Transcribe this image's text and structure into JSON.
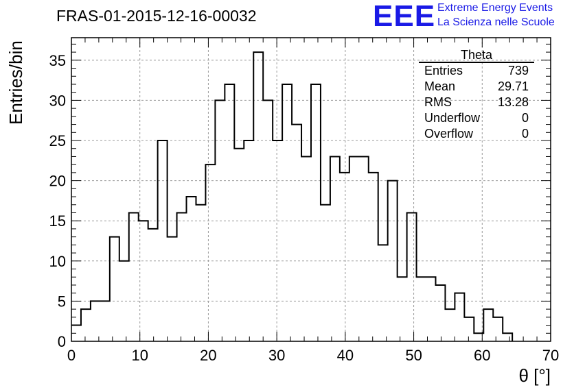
{
  "header": {
    "run_title": "FRAS-01-2015-12-16-00032",
    "logo_text": "EEE",
    "logo_line1": "Extreme Energy Events",
    "logo_line2": "La Scienza nelle Scuole"
  },
  "stats": {
    "title": "Theta",
    "rows": [
      {
        "label": "Entries",
        "value": "739"
      },
      {
        "label": "Mean",
        "value": "29.71"
      },
      {
        "label": "RMS",
        "value": "13.28"
      },
      {
        "label": "Underflow",
        "value": "0"
      },
      {
        "label": "Overflow",
        "value": "0"
      }
    ]
  },
  "chart_data": {
    "type": "bar",
    "style": "step-histogram",
    "title": "FRAS-01-2015-12-16-00032",
    "xlabel": "θ [°]",
    "ylabel": "Entries/bin",
    "xlim": [
      0,
      70
    ],
    "ylim": [
      0,
      37.8
    ],
    "bin_width": 1.4,
    "x_ticks": [
      "0",
      "10",
      "20",
      "30",
      "40",
      "50",
      "60",
      "70"
    ],
    "y_ticks": [
      "0",
      "5",
      "10",
      "15",
      "20",
      "25",
      "30",
      "35"
    ],
    "grid": true,
    "line_color": "#000000",
    "values": [
      2,
      4,
      5,
      5,
      13,
      10,
      16,
      15,
      14,
      25,
      13,
      16,
      18,
      17,
      22,
      30,
      32,
      24,
      25,
      36,
      30,
      25,
      32,
      27,
      23,
      32,
      17,
      23,
      21,
      23,
      23,
      21,
      12,
      20,
      8,
      16,
      8,
      8,
      7,
      4,
      6,
      3,
      1,
      4,
      3,
      1
    ]
  }
}
